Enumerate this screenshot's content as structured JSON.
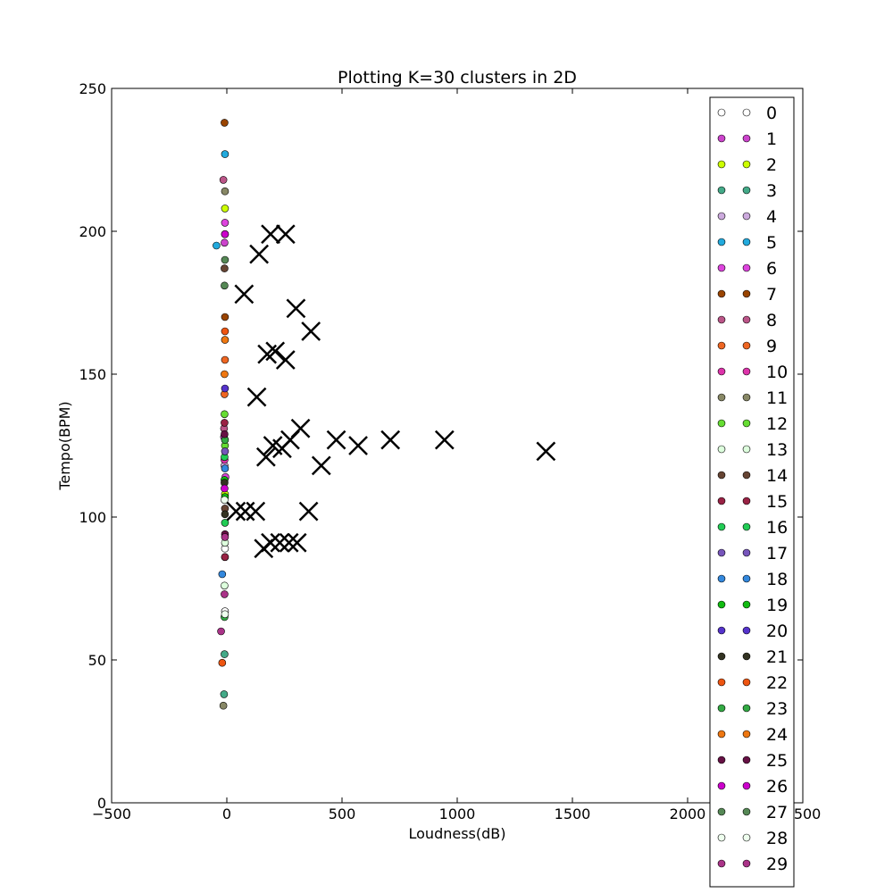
{
  "chart_data": {
    "type": "scatter",
    "title": "Plotting K=30 clusters in 2D",
    "xlabel": "Loudness(dB)",
    "ylabel": "Tempo(BPM)",
    "xlim": [
      -500,
      2500
    ],
    "ylim": [
      0,
      250
    ],
    "xticks": [
      -500,
      0,
      500,
      1000,
      1500,
      2000,
      2500
    ],
    "yticks": [
      0,
      50,
      100,
      150,
      200,
      250
    ],
    "xtick_labels": [
      "−500",
      "0",
      "500",
      "1000",
      "1500",
      "2000",
      "2500"
    ],
    "ytick_labels": [
      "0",
      "50",
      "100",
      "150",
      "200",
      "250"
    ],
    "grid": false,
    "legend_position": "right",
    "series": [
      {
        "name": "0",
        "color": "#ffffff",
        "points": [
          [
            -8,
            67
          ],
          [
            -8,
            89
          ]
        ]
      },
      {
        "name": "1",
        "color": "#cc44cc",
        "points": [
          [
            -12,
            128
          ],
          [
            -10,
            196
          ]
        ]
      },
      {
        "name": "2",
        "color": "#ccff00",
        "points": [
          [
            -8,
            208
          ],
          [
            -8,
            108
          ]
        ]
      },
      {
        "name": "3",
        "color": "#44aa88",
        "points": [
          [
            -10,
            52
          ],
          [
            -12,
            38
          ],
          [
            -8,
            86
          ]
        ]
      },
      {
        "name": "4",
        "color": "#ccaadd",
        "points": [
          [
            -10,
            118
          ]
        ]
      },
      {
        "name": "5",
        "color": "#22aadd",
        "points": [
          [
            -8,
            227
          ],
          [
            -45,
            195
          ]
        ]
      },
      {
        "name": "6",
        "color": "#dd44dd",
        "points": [
          [
            -8,
            203
          ],
          [
            -6,
            114
          ]
        ]
      },
      {
        "name": "7",
        "color": "#994400",
        "points": [
          [
            -10,
            238
          ],
          [
            -8,
            170
          ]
        ]
      },
      {
        "name": "8",
        "color": "#bb5588",
        "points": [
          [
            -15,
            218
          ],
          [
            -12,
            131
          ]
        ]
      },
      {
        "name": "9",
        "color": "#ee6622",
        "points": [
          [
            -8,
            155
          ],
          [
            -10,
            143
          ]
        ]
      },
      {
        "name": "10",
        "color": "#dd33aa",
        "points": [
          [
            -8,
            199
          ],
          [
            -10,
            120
          ]
        ]
      },
      {
        "name": "11",
        "color": "#888866",
        "points": [
          [
            -15,
            34
          ],
          [
            -8,
            214
          ]
        ]
      },
      {
        "name": "12",
        "color": "#66dd33",
        "points": [
          [
            -10,
            136
          ],
          [
            -8,
            125
          ]
        ]
      },
      {
        "name": "13",
        "color": "#ddffdd",
        "points": [
          [
            -8,
            91
          ],
          [
            -10,
            76
          ]
        ]
      },
      {
        "name": "14",
        "color": "#664433",
        "points": [
          [
            -10,
            187
          ],
          [
            -8,
            103
          ]
        ]
      },
      {
        "name": "15",
        "color": "#992244",
        "points": [
          [
            -10,
            133
          ],
          [
            -8,
            86
          ]
        ]
      },
      {
        "name": "16",
        "color": "#22cc55",
        "points": [
          [
            -10,
            121
          ],
          [
            -8,
            98
          ]
        ]
      },
      {
        "name": "17",
        "color": "#7755bb",
        "points": [
          [
            -8,
            123
          ]
        ]
      },
      {
        "name": "18",
        "color": "#3388dd",
        "points": [
          [
            -20,
            80
          ],
          [
            -8,
            117
          ]
        ]
      },
      {
        "name": "19",
        "color": "#11bb11",
        "points": [
          [
            -10,
            113
          ],
          [
            -8,
            107
          ]
        ]
      },
      {
        "name": "20",
        "color": "#5533cc",
        "points": [
          [
            -8,
            145
          ]
        ]
      },
      {
        "name": "21",
        "color": "#333322",
        "points": [
          [
            -10,
            112
          ],
          [
            -8,
            101
          ]
        ]
      },
      {
        "name": "22",
        "color": "#ee5511",
        "points": [
          [
            -20,
            49
          ],
          [
            -8,
            165
          ]
        ]
      },
      {
        "name": "23",
        "color": "#33aa44",
        "points": [
          [
            -10,
            65
          ],
          [
            -8,
            127
          ]
        ]
      },
      {
        "name": "24",
        "color": "#ee7711",
        "points": [
          [
            -8,
            162
          ],
          [
            -10,
            150
          ]
        ]
      },
      {
        "name": "25",
        "color": "#661144",
        "points": [
          [
            -10,
            129
          ],
          [
            -8,
            94
          ]
        ]
      },
      {
        "name": "26",
        "color": "#cc00cc",
        "points": [
          [
            -8,
            199
          ],
          [
            -10,
            110
          ]
        ]
      },
      {
        "name": "27",
        "color": "#558855",
        "points": [
          [
            -10,
            181
          ],
          [
            -8,
            190
          ]
        ]
      },
      {
        "name": "28",
        "color": "#eeffee",
        "points": [
          [
            -10,
            106
          ],
          [
            -8,
            66
          ]
        ]
      },
      {
        "name": "29",
        "color": "#aa3388",
        "points": [
          [
            -25,
            60
          ],
          [
            -10,
            73
          ],
          [
            -8,
            93
          ]
        ]
      }
    ],
    "centroids": [
      {
        "x": 190,
        "y": 199
      },
      {
        "x": 255,
        "y": 199
      },
      {
        "x": 140,
        "y": 192
      },
      {
        "x": 75,
        "y": 178
      },
      {
        "x": 300,
        "y": 173
      },
      {
        "x": 365,
        "y": 165
      },
      {
        "x": 175,
        "y": 157
      },
      {
        "x": 210,
        "y": 158
      },
      {
        "x": 255,
        "y": 155
      },
      {
        "x": 130,
        "y": 142
      },
      {
        "x": 320,
        "y": 131
      },
      {
        "x": 475,
        "y": 127
      },
      {
        "x": 710,
        "y": 127
      },
      {
        "x": 945,
        "y": 127
      },
      {
        "x": 275,
        "y": 127
      },
      {
        "x": 570,
        "y": 125
      },
      {
        "x": 200,
        "y": 125
      },
      {
        "x": 240,
        "y": 124
      },
      {
        "x": 1385,
        "y": 123
      },
      {
        "x": 170,
        "y": 121
      },
      {
        "x": 410,
        "y": 118
      },
      {
        "x": 40,
        "y": 102
      },
      {
        "x": 80,
        "y": 102
      },
      {
        "x": 125,
        "y": 102
      },
      {
        "x": 355,
        "y": 102
      },
      {
        "x": 190,
        "y": 91
      },
      {
        "x": 230,
        "y": 91
      },
      {
        "x": 270,
        "y": 91
      },
      {
        "x": 305,
        "y": 91
      },
      {
        "x": 160,
        "y": 89
      }
    ]
  }
}
